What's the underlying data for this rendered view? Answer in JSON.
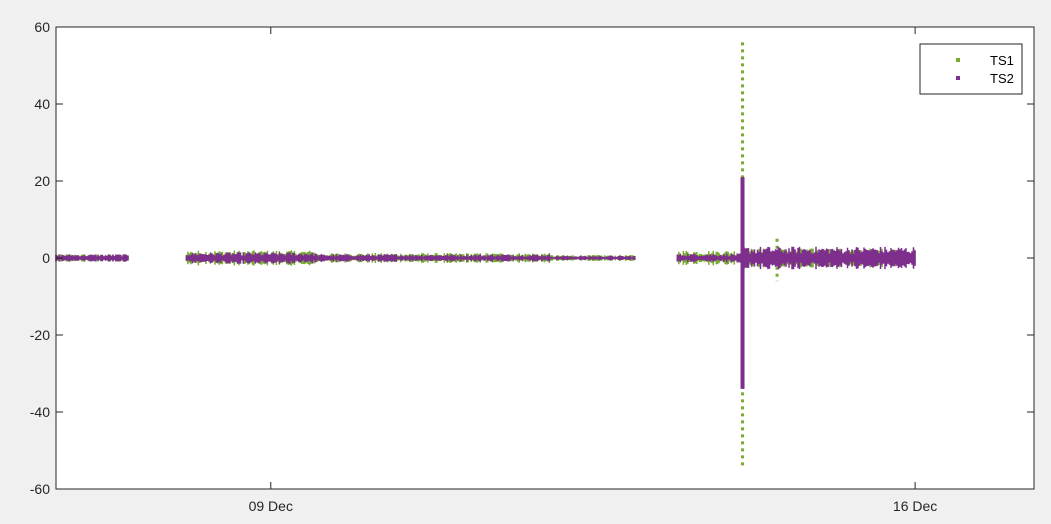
{
  "chart_data": {
    "type": "scatter",
    "title": "",
    "xlabel": "",
    "ylabel": "",
    "ylim": [
      -60,
      60
    ],
    "xlim": [
      "2019-12-06T16:00",
      "2019-12-17T07:00"
    ],
    "y_ticks": [
      60,
      40,
      20,
      0,
      -20,
      -40,
      -60
    ],
    "x_ticks": [
      {
        "date": "2019-12-09",
        "label": "09 Dec"
      },
      {
        "date": "2019-12-16",
        "label": "16 Dec"
      }
    ],
    "grid": false,
    "legend_position": "top-right",
    "series": [
      {
        "name": "TS1",
        "color": "#77ac30",
        "segments": [
          {
            "start": "2019-12-06T16:00",
            "end": "2019-12-07T11:00",
            "amplitude": 1.0
          },
          {
            "start": "2019-12-08T02:00",
            "end": "2019-12-09T12:00",
            "amplitude": 2.0
          },
          {
            "start": "2019-12-09T12:00",
            "end": "2019-12-12T01:00",
            "amplitude": 1.3
          },
          {
            "start": "2019-12-12T01:00",
            "end": "2019-12-12T23:00",
            "amplitude": 0.8
          },
          {
            "start": "2019-12-13T10:00",
            "end": "2019-12-14T03:00",
            "amplitude": 2.0
          },
          {
            "start": "2019-12-14T03:00",
            "end": "2019-12-16T00:00",
            "amplitude": 2.5
          }
        ],
        "spikes": [
          {
            "time": "2019-12-14T03:00",
            "min": -54,
            "max": 56
          },
          {
            "time": "2019-12-14T12:00",
            "min": -6,
            "max": 5
          }
        ]
      },
      {
        "name": "TS2",
        "color": "#7e2f8e",
        "segments": [
          {
            "start": "2019-12-06T16:00",
            "end": "2019-12-07T11:00",
            "amplitude": 1.0
          },
          {
            "start": "2019-12-08T02:00",
            "end": "2019-12-09T12:00",
            "amplitude": 1.5
          },
          {
            "start": "2019-12-09T12:00",
            "end": "2019-12-12T01:00",
            "amplitude": 1.0
          },
          {
            "start": "2019-12-12T01:00",
            "end": "2019-12-12T23:00",
            "amplitude": 0.6
          },
          {
            "start": "2019-12-13T10:00",
            "end": "2019-12-14T03:00",
            "amplitude": 1.2
          },
          {
            "start": "2019-12-14T03:00",
            "end": "2019-12-16T00:00",
            "amplitude": 3.0
          }
        ],
        "spikes": [
          {
            "time": "2019-12-14T03:00",
            "min": -34,
            "max": 21
          }
        ]
      }
    ]
  }
}
